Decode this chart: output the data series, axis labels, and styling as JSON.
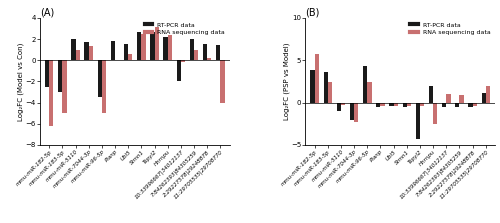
{
  "panel_A": {
    "title": "(A)",
    "ylabel": "Log₂FC (Model vs Con)",
    "ylim": [
      -8,
      4
    ],
    "yticks": [
      -8,
      -6,
      -4,
      -2,
      0,
      2,
      4
    ],
    "categories": [
      "mmu-miR-182-5p",
      "mmu-miR-183-5p",
      "mmu-miR-5110",
      "mmu-miR-7044-3p",
      "mmu-miR-96-5p",
      "Pianp",
      "Ubl5",
      "Stmn1",
      "Tspyl2",
      "Hnrnpu",
      "10:33996667|34012137",
      "7:84262393|84305259",
      "2:29227578|29248878",
      "11:29705535|29708770"
    ],
    "rtpcr": [
      -2.5,
      -3.0,
      2.0,
      1.7,
      -3.5,
      1.8,
      1.5,
      2.7,
      2.7,
      2.2,
      -2.0,
      2.0,
      1.5,
      1.4
    ],
    "rnaseq": [
      -6.2,
      -5.0,
      1.0,
      1.3,
      -5.0,
      0.0,
      0.6,
      2.5,
      3.1,
      2.4,
      -0.2,
      1.0,
      0.2,
      -4.0
    ]
  },
  "panel_B": {
    "title": "(B)",
    "ylabel": "Log₂FC (PSP vs Model)",
    "ylim": [
      -5,
      10
    ],
    "yticks": [
      -5,
      0,
      5,
      10
    ],
    "categories": [
      "mmu-miR-182-5p",
      "mmu-miR-183-5p",
      "mmu-miR-5110",
      "mmu-miR-7044-3p",
      "mmu-miR-96-5p",
      "Pianp",
      "Ubl5",
      "Stmn1",
      "Tspyl2",
      "Hnrnpu",
      "10:33996667|34012137",
      "7:84262393|84305259",
      "2:29227578|29248878",
      "11:29705535|29708770"
    ],
    "rtpcr": [
      3.9,
      3.6,
      -1.0,
      -2.0,
      4.3,
      -0.5,
      -0.4,
      -0.5,
      -4.3,
      1.9,
      -0.5,
      -0.5,
      -0.5,
      1.1
    ],
    "rnaseq": [
      5.7,
      2.4,
      -0.3,
      -2.3,
      2.4,
      -0.4,
      -0.4,
      -0.4,
      -0.4,
      -2.5,
      1.0,
      0.9,
      -0.4,
      1.9
    ]
  },
  "bar_width": 0.32,
  "color_rtpcr": "#1a1a1a",
  "color_rnaseq": "#c87070",
  "legend_rtpcr": "RT-PCR data",
  "legend_rnaseq": "RNA sequencing data",
  "tick_fontsize": 4.0,
  "label_fontsize": 5.0,
  "title_fontsize": 7,
  "legend_fontsize": 4.5,
  "ytick_fontsize": 5.0
}
